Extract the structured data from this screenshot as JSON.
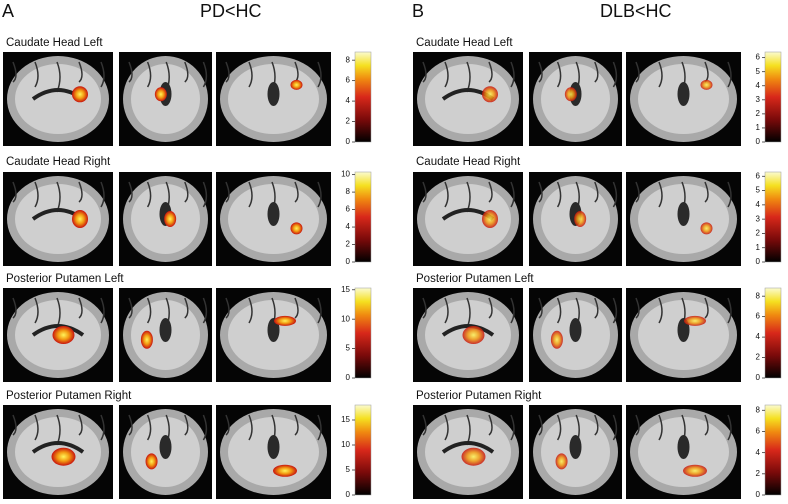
{
  "panels": [
    {
      "letter": "A",
      "title": "PD<HC",
      "rows": [
        {
          "label": "Caudate Head Left",
          "colorbar": {
            "lim": [
              0,
              8.8
            ],
            "ticks": [
              0,
              2,
              4,
              6,
              8
            ]
          }
        },
        {
          "label": "Caudate Head Right",
          "colorbar": {
            "lim": [
              0,
              10.3
            ],
            "ticks": [
              0,
              2,
              4,
              6,
              8,
              10
            ]
          }
        },
        {
          "label": "Posterior Putamen Left",
          "colorbar": {
            "lim": [
              0,
              15.3
            ],
            "ticks": [
              0,
              5,
              10,
              15
            ]
          }
        },
        {
          "label": "Posterior Putamen Right",
          "colorbar": {
            "lim": [
              0,
              18
            ],
            "ticks": [
              0,
              5,
              10,
              15
            ]
          }
        }
      ]
    },
    {
      "letter": "B",
      "title": "DLB<HC",
      "rows": [
        {
          "label": "Caudate Head Left",
          "colorbar": {
            "lim": [
              0,
              6.4
            ],
            "ticks": [
              0,
              1,
              2,
              3,
              4,
              5,
              6
            ]
          }
        },
        {
          "label": "Caudate Head Right",
          "colorbar": {
            "lim": [
              0,
              6.3
            ],
            "ticks": [
              0,
              1,
              2,
              3,
              4,
              5,
              6
            ]
          }
        },
        {
          "label": "Posterior Putamen Left",
          "colorbar": {
            "lim": [
              0,
              8.8
            ],
            "ticks": [
              0,
              2,
              4,
              6,
              8
            ]
          }
        },
        {
          "label": "Posterior Putamen Right",
          "colorbar": {
            "lim": [
              0,
              8.5
            ],
            "ticks": [
              0,
              2,
              4,
              6,
              8
            ]
          }
        }
      ]
    }
  ]
}
